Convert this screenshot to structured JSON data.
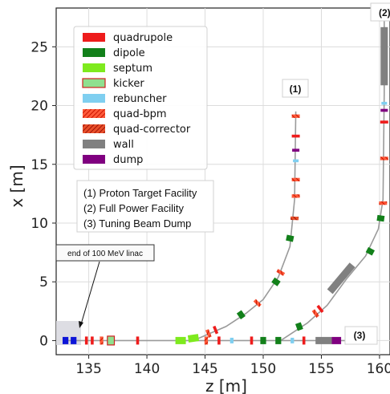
{
  "chart_data": {
    "type": "scatter",
    "xlabel": "z [m]",
    "ylabel": "x [m]",
    "xlim": [
      132.2,
      160.9
    ],
    "ylim": [
      -1.2,
      28.3
    ],
    "xticks": [
      "135",
      "140",
      "145",
      "150",
      "155",
      "160"
    ],
    "yticks": [
      "0",
      "5",
      "10",
      "15",
      "20",
      "25"
    ],
    "grid": true,
    "legend_position": "upper-left",
    "legend": [
      {
        "name": "quadrupole",
        "color": "#ee1c1c",
        "pattern": "solid"
      },
      {
        "name": "dipole",
        "color": "#12801a",
        "pattern": "solid"
      },
      {
        "name": "septum",
        "color": "#7eea1e",
        "pattern": "solid"
      },
      {
        "name": "kicker",
        "color": "#8fe08f",
        "pattern": "outlined"
      },
      {
        "name": "rebuncher",
        "color": "#7fcff0",
        "pattern": "solid"
      },
      {
        "name": "quad-bpm",
        "color": "#ff2a1a",
        "pattern": "hatched"
      },
      {
        "name": "quad-corrector",
        "color": "#d62a1a",
        "pattern": "hatched"
      },
      {
        "name": "wall",
        "color": "#808080",
        "pattern": "solid"
      },
      {
        "name": "dump",
        "color": "#800080",
        "pattern": "solid"
      }
    ],
    "facilities": [
      {
        "tag": "(1)",
        "name": "Proton Target Facility"
      },
      {
        "tag": "(2)",
        "name": "Full Power Facility"
      },
      {
        "tag": "(3)",
        "name": "Tuning Beam Dump"
      }
    ],
    "callout": "end of 100 MeV linac",
    "lines": [
      {
        "name": "main",
        "points": [
          [
            133.0,
            0
          ],
          [
            157.0,
            0
          ]
        ]
      },
      {
        "name": "branch-1",
        "points": [
          [
            144.0,
            0
          ],
          [
            146.8,
            1.2
          ],
          [
            148.5,
            2.3
          ],
          [
            150.0,
            3.5
          ],
          [
            151.3,
            5.4
          ],
          [
            152.3,
            8.0
          ],
          [
            152.7,
            12.0
          ],
          [
            152.8,
            19.5
          ]
        ]
      },
      {
        "name": "branch-2",
        "points": [
          [
            151.5,
            0
          ],
          [
            153.8,
            1.5
          ],
          [
            155.5,
            3.0
          ],
          [
            157.2,
            5.3
          ],
          [
            158.8,
            7.2
          ],
          [
            159.9,
            9.5
          ],
          [
            160.3,
            12.0
          ],
          [
            160.4,
            21.0
          ],
          [
            160.4,
            27.2
          ]
        ]
      }
    ],
    "elements": [
      {
        "type": "dump",
        "z": 133.0,
        "x": 0,
        "len": 0.5,
        "angle": 0,
        "color": "#0d15d8"
      },
      {
        "type": "dump",
        "z": 133.7,
        "x": 0,
        "len": 0.5,
        "angle": 0,
        "color": "#0d15d8"
      },
      {
        "type": "quadrupole",
        "z": 134.8,
        "x": 0,
        "len": 0.25,
        "angle": 0
      },
      {
        "type": "quadrupole",
        "z": 135.3,
        "x": 0,
        "len": 0.25,
        "angle": 0
      },
      {
        "type": "quad-bpm",
        "z": 136.1,
        "x": 0,
        "len": 0.3,
        "angle": 0
      },
      {
        "type": "kicker",
        "z": 136.9,
        "x": 0,
        "len": 0.6,
        "angle": 0
      },
      {
        "type": "quadrupole",
        "z": 139.2,
        "x": 0,
        "len": 0.25,
        "angle": 0
      },
      {
        "type": "septum",
        "z": 142.9,
        "x": 0,
        "len": 0.9,
        "angle": 0
      },
      {
        "type": "septum",
        "z": 144.0,
        "x": 0.2,
        "len": 0.9,
        "angle": 8
      },
      {
        "type": "quad-bpm",
        "z": 145.1,
        "x": 0,
        "len": 0.3,
        "angle": 0
      },
      {
        "type": "quadrupole",
        "z": 146.2,
        "x": 0,
        "len": 0.25,
        "angle": 0
      },
      {
        "type": "rebuncher",
        "z": 147.3,
        "x": 0,
        "len": 0.3,
        "angle": 0
      },
      {
        "type": "quadrupole",
        "z": 149.0,
        "x": 0,
        "len": 0.25,
        "angle": 0
      },
      {
        "type": "dipole",
        "z": 150.0,
        "x": 0,
        "len": 0.5,
        "angle": 0
      },
      {
        "type": "dipole",
        "z": 151.3,
        "x": 0,
        "len": 0.5,
        "angle": 0
      },
      {
        "type": "rebuncher",
        "z": 152.5,
        "x": 0,
        "len": 0.3,
        "angle": 0
      },
      {
        "type": "quadrupole",
        "z": 153.5,
        "x": 0,
        "len": 0.25,
        "angle": 0
      },
      {
        "type": "wall",
        "z": 155.2,
        "x": 0,
        "len": 1.4,
        "angle": 0
      },
      {
        "type": "dump",
        "z": 156.3,
        "x": 0,
        "len": 0.8,
        "angle": 0
      },
      {
        "type": "quad-bpm",
        "z": 145.3,
        "x": 0.6,
        "len": 0.3,
        "angle": 22
      },
      {
        "type": "quadrupole",
        "z": 145.9,
        "x": 0.9,
        "len": 0.25,
        "angle": 22
      },
      {
        "type": "dipole",
        "z": 148.1,
        "x": 2.2,
        "len": 0.5,
        "angle": 35
      },
      {
        "type": "quad-bpm",
        "z": 149.5,
        "x": 3.2,
        "len": 0.3,
        "angle": 45
      },
      {
        "type": "dipole",
        "z": 151.1,
        "x": 5.0,
        "len": 0.5,
        "angle": 55
      },
      {
        "type": "quad-bpm",
        "z": 151.5,
        "x": 5.8,
        "len": 0.3,
        "angle": 60
      },
      {
        "type": "dipole",
        "z": 152.3,
        "x": 8.7,
        "len": 0.5,
        "angle": 78
      },
      {
        "type": "quad-corrector",
        "z": 152.7,
        "x": 10.4,
        "len": 0.3,
        "angle": 88
      },
      {
        "type": "quad-bpm",
        "z": 152.8,
        "x": 12.3,
        "len": 0.3,
        "angle": 90
      },
      {
        "type": "quad-bpm",
        "z": 152.8,
        "x": 13.7,
        "len": 0.3,
        "angle": 90
      },
      {
        "type": "rebuncher",
        "z": 152.8,
        "x": 15.3,
        "len": 0.25,
        "angle": 90
      },
      {
        "type": "dump",
        "z": 152.8,
        "x": 16.2,
        "len": 0.25,
        "angle": 90
      },
      {
        "type": "quadrupole",
        "z": 152.8,
        "x": 17.4,
        "len": 0.25,
        "angle": 90
      },
      {
        "type": "quad-bpm",
        "z": 152.8,
        "x": 19.1,
        "len": 0.3,
        "angle": 90
      },
      {
        "type": "dipole",
        "z": 153.1,
        "x": 1.2,
        "len": 0.5,
        "angle": 20
      },
      {
        "type": "quad-bpm",
        "z": 154.5,
        "x": 2.3,
        "len": 0.3,
        "angle": 35
      },
      {
        "type": "quadrupole",
        "z": 154.9,
        "x": 2.7,
        "len": 0.25,
        "angle": 38
      },
      {
        "type": "wall",
        "z": 156.7,
        "x": 5.3,
        "len": 3.0,
        "angle": 50
      },
      {
        "type": "dipole",
        "z": 159.2,
        "x": 7.6,
        "len": 0.5,
        "angle": 62
      },
      {
        "type": "dipole",
        "z": 160.1,
        "x": 10.4,
        "len": 0.5,
        "angle": 82
      },
      {
        "type": "quad-bpm",
        "z": 160.3,
        "x": 11.7,
        "len": 0.3,
        "angle": 90
      },
      {
        "type": "quad-bpm",
        "z": 160.4,
        "x": 15.5,
        "len": 0.3,
        "angle": 90
      },
      {
        "type": "quadrupole",
        "z": 160.4,
        "x": 18.6,
        "len": 0.25,
        "angle": 90
      },
      {
        "type": "dump",
        "z": 160.4,
        "x": 19.6,
        "len": 0.25,
        "angle": 90
      },
      {
        "type": "rebuncher",
        "z": 160.4,
        "x": 20.2,
        "len": 0.25,
        "angle": 90
      },
      {
        "type": "wall",
        "z": 160.4,
        "x": 24.2,
        "len": 5.0,
        "angle": 90
      }
    ]
  }
}
